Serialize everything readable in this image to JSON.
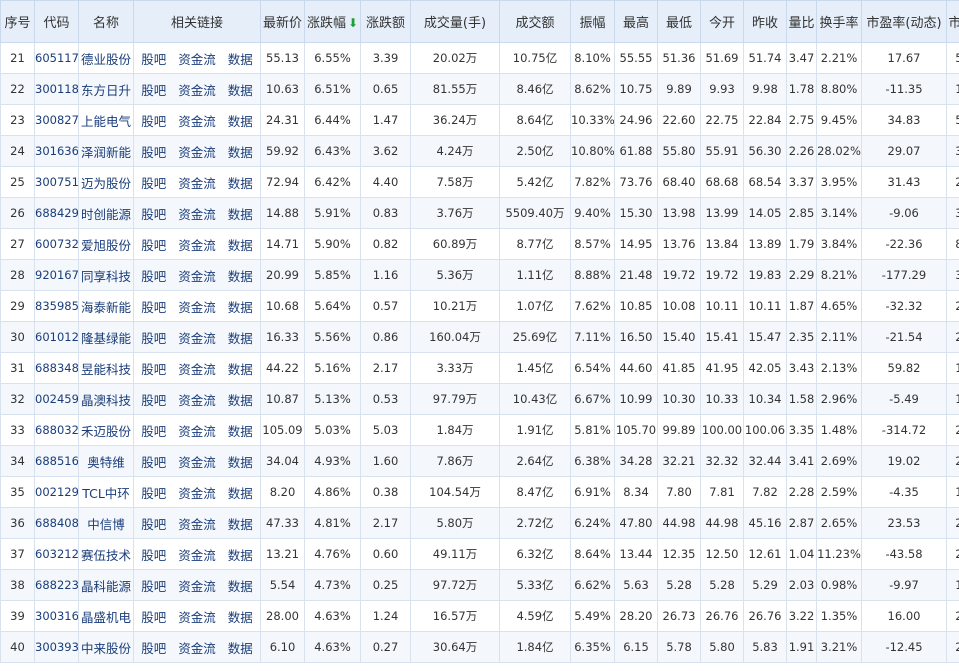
{
  "colors": {
    "up": "#e0302b",
    "down": "#16a03a",
    "link": "#1a3d7a",
    "header_bg": "#e6eff9"
  },
  "sort_icon": "arrow-down-icon",
  "headers": [
    "序号",
    "代码",
    "名称",
    "相关链接",
    "最新价",
    "涨跌幅",
    "涨跌额",
    "成交量(手)",
    "成交额",
    "振幅",
    "最高",
    "最低",
    "今开",
    "昨收",
    "量比",
    "换手率",
    "市盈率(动态)",
    "市净率"
  ],
  "link_labels": [
    "股吧",
    "资金流",
    "数据"
  ],
  "rows": [
    {
      "no": "21",
      "code": "605117",
      "name": "德业股份",
      "price": "55.13",
      "pct": "6.55%",
      "chg": "3.39",
      "vol": "20.02万",
      "amount": "10.75亿",
      "amp": "8.10%",
      "high": "55.55",
      "low": "51.36",
      "open": "51.69",
      "prev": "51.74",
      "vr": "3.47",
      "turn": "2.21%",
      "pe": "17.67",
      "pb": "5.77",
      "c_high": "up",
      "c_low": "down",
      "c_open": "down"
    },
    {
      "no": "22",
      "code": "300118",
      "name": "东方日升",
      "price": "10.63",
      "pct": "6.51%",
      "chg": "0.65",
      "vol": "81.55万",
      "amount": "8.46亿",
      "amp": "8.62%",
      "high": "10.75",
      "low": "9.89",
      "open": "9.93",
      "prev": "9.98",
      "vr": "1.78",
      "turn": "8.80%",
      "pe": "-11.35",
      "pb": "1.08",
      "c_high": "up",
      "c_low": "down",
      "c_open": "down"
    },
    {
      "no": "23",
      "code": "300827",
      "name": "上能电气",
      "price": "24.31",
      "pct": "6.44%",
      "chg": "1.47",
      "vol": "36.24万",
      "amount": "8.64亿",
      "amp": "10.33%",
      "high": "24.96",
      "low": "22.60",
      "open": "22.75",
      "prev": "22.84",
      "vr": "2.75",
      "turn": "9.45%",
      "pe": "34.83",
      "pb": "5.53",
      "c_high": "up",
      "c_low": "down",
      "c_open": "down"
    },
    {
      "no": "24",
      "code": "301636",
      "name": "泽润新能",
      "price": "59.92",
      "pct": "6.43%",
      "chg": "3.62",
      "vol": "4.24万",
      "amount": "2.50亿",
      "amp": "10.80%",
      "high": "61.88",
      "low": "55.80",
      "open": "55.91",
      "prev": "56.30",
      "vr": "2.26",
      "turn": "28.02%",
      "pe": "29.07",
      "pb": "3.52",
      "c_high": "up",
      "c_low": "down",
      "c_open": "down"
    },
    {
      "no": "25",
      "code": "300751",
      "name": "迈为股份",
      "price": "72.94",
      "pct": "6.42%",
      "chg": "4.40",
      "vol": "7.58万",
      "amount": "5.42亿",
      "amp": "7.82%",
      "high": "73.76",
      "low": "68.40",
      "open": "68.68",
      "prev": "68.54",
      "vr": "3.37",
      "turn": "3.95%",
      "pe": "31.43",
      "pb": "2.72",
      "c_high": "up",
      "c_low": "down",
      "c_open": "up"
    },
    {
      "no": "26",
      "code": "688429",
      "name": "时创能源",
      "price": "14.88",
      "pct": "5.91%",
      "chg": "0.83",
      "vol": "3.76万",
      "amount": "5509.40万",
      "amp": "9.40%",
      "high": "15.30",
      "low": "13.98",
      "open": "13.99",
      "prev": "14.05",
      "vr": "2.85",
      "turn": "3.14%",
      "pe": "-9.06",
      "pb": "3.88",
      "c_high": "up",
      "c_low": "down",
      "c_open": "down"
    },
    {
      "no": "27",
      "code": "600732",
      "name": "爱旭股份",
      "price": "14.71",
      "pct": "5.90%",
      "chg": "0.82",
      "vol": "60.89万",
      "amount": "8.77亿",
      "amp": "8.57%",
      "high": "14.95",
      "low": "13.76",
      "open": "13.84",
      "prev": "13.89",
      "vr": "1.79",
      "turn": "3.84%",
      "pe": "-22.36",
      "pb": "8.26",
      "c_high": "up",
      "c_low": "down",
      "c_open": "down"
    },
    {
      "no": "28",
      "code": "920167",
      "name": "同享科技",
      "price": "20.99",
      "pct": "5.85%",
      "chg": "1.16",
      "vol": "5.36万",
      "amount": "1.11亿",
      "amp": "8.88%",
      "high": "21.48",
      "low": "19.72",
      "open": "19.72",
      "prev": "19.83",
      "vr": "2.29",
      "turn": "8.21%",
      "pe": "-177.29",
      "pb": "3.80",
      "c_high": "up",
      "c_low": "down",
      "c_open": "down"
    },
    {
      "no": "29",
      "code": "835985",
      "name": "海泰新能",
      "price": "10.68",
      "pct": "5.64%",
      "chg": "0.57",
      "vol": "10.21万",
      "amount": "1.07亿",
      "amp": "7.62%",
      "high": "10.85",
      "low": "10.08",
      "open": "10.11",
      "prev": "10.11",
      "vr": "1.87",
      "turn": "4.65%",
      "pe": "-32.32",
      "pb": "2.36",
      "c_high": "up",
      "c_low": "down",
      "c_open": "flat"
    },
    {
      "no": "30",
      "code": "601012",
      "name": "隆基绿能",
      "price": "16.33",
      "pct": "5.56%",
      "chg": "0.86",
      "vol": "160.04万",
      "amount": "25.69亿",
      "amp": "7.11%",
      "high": "16.50",
      "low": "15.40",
      "open": "15.41",
      "prev": "15.47",
      "vr": "2.35",
      "turn": "2.11%",
      "pe": "-21.54",
      "pb": "2.10",
      "c_high": "up",
      "c_low": "down",
      "c_open": "down"
    },
    {
      "no": "31",
      "code": "688348",
      "name": "昱能科技",
      "price": "44.22",
      "pct": "5.16%",
      "chg": "2.17",
      "vol": "3.33万",
      "amount": "1.45亿",
      "amp": "6.54%",
      "high": "44.60",
      "low": "41.85",
      "open": "41.95",
      "prev": "42.05",
      "vr": "3.43",
      "turn": "2.13%",
      "pe": "59.82",
      "pb": "1.93",
      "c_high": "up",
      "c_low": "down",
      "c_open": "down"
    },
    {
      "no": "32",
      "code": "002459",
      "name": "晶澳科技",
      "price": "10.87",
      "pct": "5.13%",
      "chg": "0.53",
      "vol": "97.79万",
      "amount": "10.43亿",
      "amp": "6.67%",
      "high": "10.99",
      "low": "10.30",
      "open": "10.33",
      "prev": "10.34",
      "vr": "1.58",
      "turn": "2.96%",
      "pe": "-5.49",
      "pb": "1.40",
      "c_high": "up",
      "c_low": "down",
      "c_open": "down"
    },
    {
      "no": "33",
      "code": "688032",
      "name": "禾迈股份",
      "price": "105.09",
      "pct": "5.03%",
      "chg": "5.03",
      "vol": "1.84万",
      "amount": "1.91亿",
      "amp": "5.81%",
      "high": "105.70",
      "low": "99.89",
      "open": "100.00",
      "prev": "100.06",
      "vr": "3.35",
      "turn": "1.48%",
      "pe": "-314.72",
      "pb": "2.20",
      "c_high": "up",
      "c_low": "down",
      "c_open": "down"
    },
    {
      "no": "34",
      "code": "688516",
      "name": "奥特维",
      "price": "34.04",
      "pct": "4.93%",
      "chg": "1.60",
      "vol": "7.86万",
      "amount": "2.64亿",
      "amp": "6.38%",
      "high": "34.28",
      "low": "32.21",
      "open": "32.32",
      "prev": "32.44",
      "vr": "3.41",
      "turn": "2.69%",
      "pe": "19.02",
      "pb": "2.99",
      "c_high": "up",
      "c_low": "down",
      "c_open": "down"
    },
    {
      "no": "35",
      "code": "002129",
      "name": "TCL中环",
      "price": "8.20",
      "pct": "4.86%",
      "chg": "0.38",
      "vol": "104.54万",
      "amount": "8.47亿",
      "amp": "6.91%",
      "high": "8.34",
      "low": "7.80",
      "open": "7.81",
      "prev": "7.82",
      "vr": "2.28",
      "turn": "2.59%",
      "pe": "-4.35",
      "pb": "1.14",
      "c_high": "up",
      "c_low": "down",
      "c_open": "down"
    },
    {
      "no": "36",
      "code": "688408",
      "name": "中信博",
      "price": "47.33",
      "pct": "4.81%",
      "chg": "2.17",
      "vol": "5.80万",
      "amount": "2.72亿",
      "amp": "6.24%",
      "high": "47.80",
      "low": "44.98",
      "open": "44.98",
      "prev": "45.16",
      "vr": "2.87",
      "turn": "2.65%",
      "pe": "23.53",
      "pb": "2.41",
      "c_high": "up",
      "c_low": "down",
      "c_open": "down"
    },
    {
      "no": "37",
      "code": "603212",
      "name": "赛伍技术",
      "price": "13.21",
      "pct": "4.76%",
      "chg": "0.60",
      "vol": "49.11万",
      "amount": "6.32亿",
      "amp": "8.64%",
      "high": "13.44",
      "low": "12.35",
      "open": "12.50",
      "prev": "12.61",
      "vr": "1.04",
      "turn": "11.23%",
      "pe": "-43.58",
      "pb": "2.19",
      "c_high": "up",
      "c_low": "down",
      "c_open": "down"
    },
    {
      "no": "38",
      "code": "688223",
      "name": "晶科能源",
      "price": "5.54",
      "pct": "4.73%",
      "chg": "0.25",
      "vol": "97.72万",
      "amount": "5.33亿",
      "amp": "6.62%",
      "high": "5.63",
      "low": "5.28",
      "open": "5.28",
      "prev": "5.29",
      "vr": "2.03",
      "turn": "0.98%",
      "pe": "-9.97",
      "pb": "1.86",
      "c_high": "up",
      "c_low": "down",
      "c_open": "down"
    },
    {
      "no": "39",
      "code": "300316",
      "name": "晶盛机电",
      "price": "28.00",
      "pct": "4.63%",
      "chg": "1.24",
      "vol": "16.57万",
      "amount": "4.59亿",
      "amp": "5.49%",
      "high": "28.20",
      "low": "26.73",
      "open": "26.76",
      "prev": "26.76",
      "vr": "3.22",
      "turn": "1.35%",
      "pe": "16.00",
      "pb": "2.20",
      "c_high": "up",
      "c_low": "down",
      "c_open": "flat"
    },
    {
      "no": "40",
      "code": "300393",
      "name": "中来股份",
      "price": "6.10",
      "pct": "4.63%",
      "chg": "0.27",
      "vol": "30.64万",
      "amount": "1.84亿",
      "amp": "6.35%",
      "high": "6.15",
      "low": "5.78",
      "open": "5.80",
      "prev": "5.83",
      "vr": "1.91",
      "turn": "3.21%",
      "pe": "-12.45",
      "pb": "2.06",
      "c_high": "up",
      "c_low": "down",
      "c_open": "down"
    }
  ]
}
